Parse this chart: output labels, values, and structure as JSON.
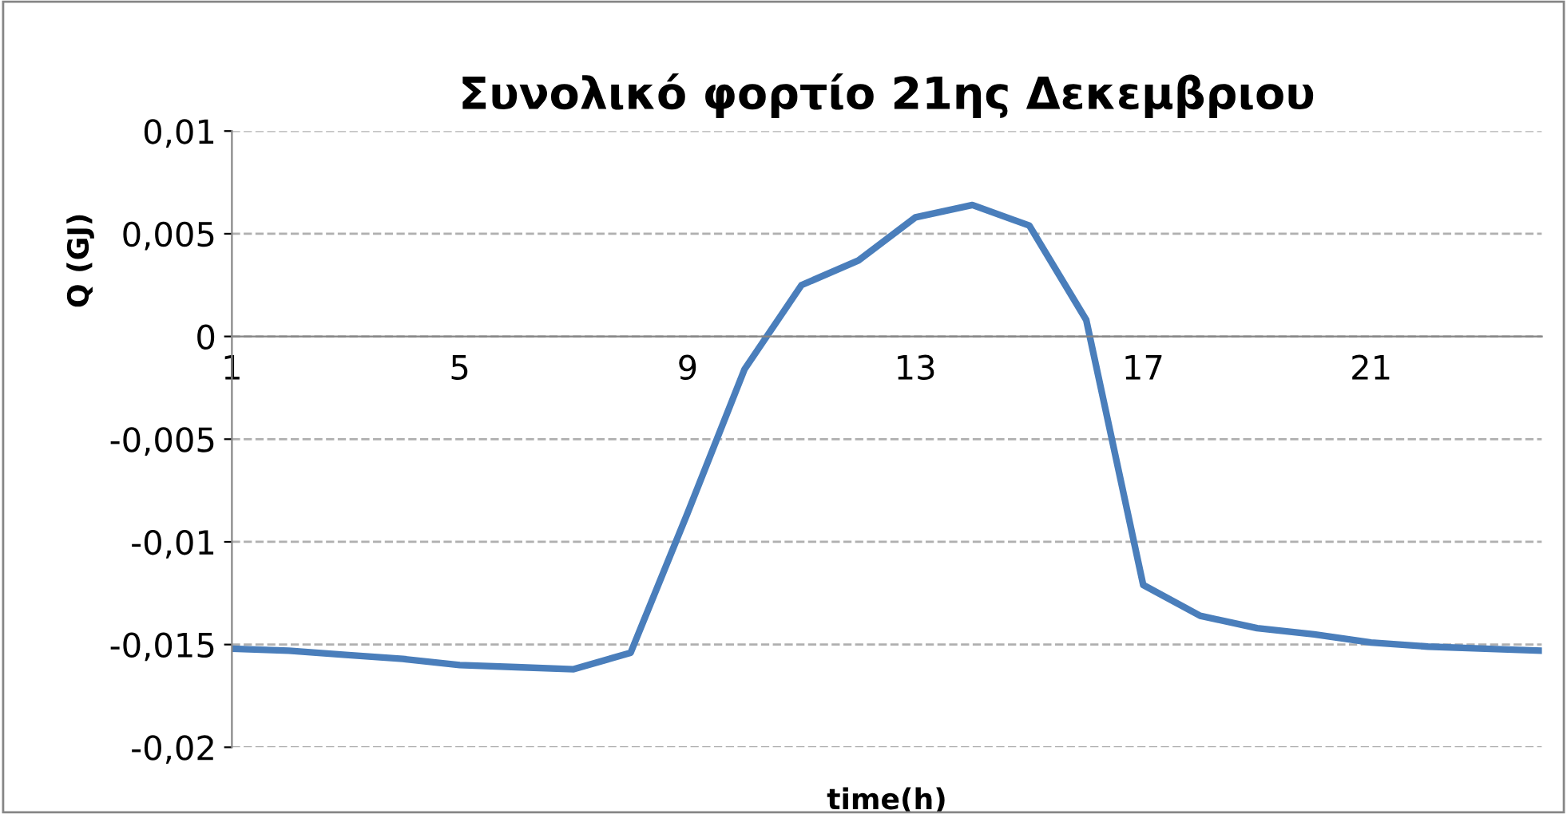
{
  "chart_data": {
    "type": "line",
    "title": "Συνολικό φορτίο 21ης Δεκεμβριου",
    "xlabel": "time(h)",
    "ylabel": "Q (GJ)",
    "x": [
      1,
      2,
      3,
      4,
      5,
      6,
      7,
      8,
      9,
      10,
      11,
      12,
      13,
      14,
      15,
      16,
      17,
      18,
      19,
      20,
      21,
      22,
      23,
      24
    ],
    "series": [
      {
        "color": "#4a7ebb",
        "values": [
          -0.0152,
          -0.0153,
          -0.0155,
          -0.0157,
          -0.016,
          -0.0161,
          -0.0162,
          -0.0154,
          -0.0086,
          -0.0016,
          0.0025,
          0.0037,
          0.0058,
          0.0064,
          0.0054,
          0.0008,
          -0.0121,
          -0.0136,
          -0.0142,
          -0.0145,
          -0.0149,
          -0.0151,
          -0.0152,
          -0.0153
        ]
      }
    ],
    "xlim": [
      1,
      24
    ],
    "xticks": [
      1,
      5,
      9,
      13,
      17,
      21
    ],
    "ylim": [
      -0.02,
      0.01
    ],
    "yticks": [
      {
        "value": -0.02,
        "label": "-0,02"
      },
      {
        "value": -0.015,
        "label": "-0,015"
      },
      {
        "value": -0.01,
        "label": "-0,01"
      },
      {
        "value": -0.005,
        "label": "-0,005"
      },
      {
        "value": 0,
        "label": "0"
      },
      {
        "value": 0.005,
        "label": "0,005"
      },
      {
        "value": 0.01,
        "label": "0,01"
      }
    ],
    "grid": "y",
    "marker": "none",
    "line_style": "solid"
  }
}
